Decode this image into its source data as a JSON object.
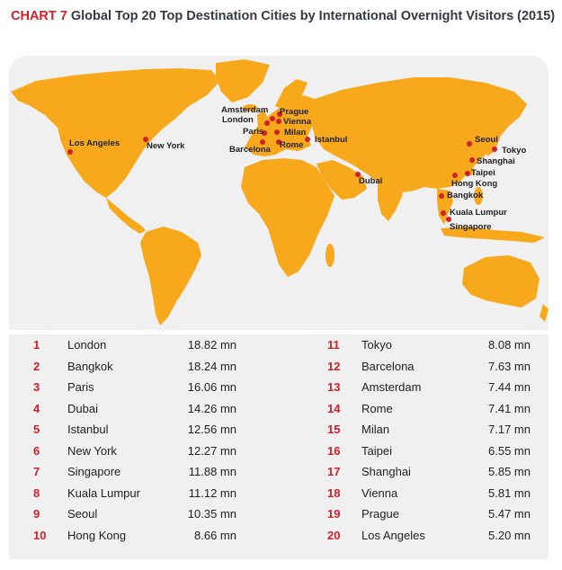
{
  "title": {
    "chart_no": "CHART 7",
    "text": "Global Top 20 Top Destination Cities by International Overnight Visitors (2015)"
  },
  "map_cities": [
    "London",
    "Bangkok",
    "Paris",
    "Dubai",
    "Istanbul",
    "New York",
    "Singapore",
    "Kuala Lumpur",
    "Seoul",
    "Hong Kong",
    "Tokyo",
    "Barcelona",
    "Amsterdam",
    "Rome",
    "Milan",
    "Taipei",
    "Shanghai",
    "Vienna",
    "Prague",
    "Los Angeles"
  ],
  "colors": {
    "land": "#f7a81b",
    "accent": "#d0202a",
    "panel": "#f0f0f0",
    "marker": "#d0202a"
  },
  "rankings": [
    {
      "rank": "1",
      "city": "London",
      "visitors": "18.82 mn"
    },
    {
      "rank": "2",
      "city": "Bangkok",
      "visitors": "18.24 mn"
    },
    {
      "rank": "3",
      "city": "Paris",
      "visitors": "16.06 mn"
    },
    {
      "rank": "4",
      "city": "Dubai",
      "visitors": "14.26 mn"
    },
    {
      "rank": "5",
      "city": "Istanbul",
      "visitors": "12.56 mn"
    },
    {
      "rank": "6",
      "city": "New York",
      "visitors": "12.27 mn"
    },
    {
      "rank": "7",
      "city": "Singapore",
      "visitors": "11.88 mn"
    },
    {
      "rank": "8",
      "city": "Kuala Lumpur",
      "visitors": "11.12 mn"
    },
    {
      "rank": "9",
      "city": "Seoul",
      "visitors": "10.35 mn"
    },
    {
      "rank": "10",
      "city": "Hong Kong",
      "visitors": "8.66 mn"
    },
    {
      "rank": "11",
      "city": "Tokyo",
      "visitors": "8.08 mn"
    },
    {
      "rank": "12",
      "city": "Barcelona",
      "visitors": "7.63 mn"
    },
    {
      "rank": "13",
      "city": "Amsterdam",
      "visitors": "7.44 mn"
    },
    {
      "rank": "14",
      "city": "Rome",
      "visitors": "7.41 mn"
    },
    {
      "rank": "15",
      "city": "Milan",
      "visitors": "7.17 mn"
    },
    {
      "rank": "16",
      "city": "Taipei",
      "visitors": "6.55 mn"
    },
    {
      "rank": "17",
      "city": "Shanghai",
      "visitors": "5.85 mn"
    },
    {
      "rank": "18",
      "city": "Vienna",
      "visitors": "5.81 mn"
    },
    {
      "rank": "19",
      "city": "Prague",
      "visitors": "5.47 mn"
    },
    {
      "rank": "20",
      "city": "Los Angeles",
      "visitors": "5.20 mn"
    }
  ]
}
